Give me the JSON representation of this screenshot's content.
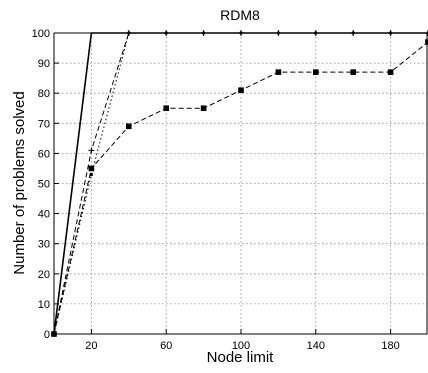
{
  "chart_data": {
    "type": "line",
    "title": "RDM8",
    "xlabel": "Node limit",
    "ylabel": "Number of problems solved",
    "xlim": [
      0,
      200
    ],
    "ylim": [
      0,
      100
    ],
    "xticks": [
      20,
      60,
      100,
      140,
      180
    ],
    "yticks": [
      0,
      10,
      20,
      30,
      40,
      50,
      60,
      70,
      80,
      90,
      100
    ],
    "grid": true,
    "legend": "none",
    "colors": {
      "line": "#000000",
      "grid": "#8c8c8c",
      "axes": "#000000"
    },
    "series": [
      {
        "style": "solid",
        "marker": "none",
        "x": [
          0,
          20,
          40,
          60,
          80,
          100,
          120,
          140,
          160,
          180,
          200
        ],
        "y": [
          0,
          100,
          100,
          100,
          100,
          100,
          100,
          100,
          100,
          100,
          100
        ]
      },
      {
        "style": "dashed",
        "marker": "plus",
        "x": [
          0,
          20,
          40,
          60,
          80,
          100,
          120,
          140,
          160,
          180,
          200
        ],
        "y": [
          0,
          61,
          100,
          100,
          100,
          100,
          100,
          100,
          100,
          100,
          100
        ]
      },
      {
        "style": "dotted",
        "marker": "circle",
        "x": [
          0,
          20,
          40,
          60,
          80,
          100,
          120,
          140,
          160,
          180,
          200
        ],
        "y": [
          0,
          53,
          100,
          100,
          100,
          100,
          100,
          100,
          100,
          100,
          100
        ]
      },
      {
        "style": "dashed",
        "marker": "square",
        "x": [
          0,
          20,
          40,
          60,
          80,
          100,
          120,
          140,
          160,
          180,
          200
        ],
        "y": [
          0,
          55,
          69,
          75,
          75,
          81,
          87,
          87,
          87,
          87,
          97
        ]
      }
    ]
  }
}
